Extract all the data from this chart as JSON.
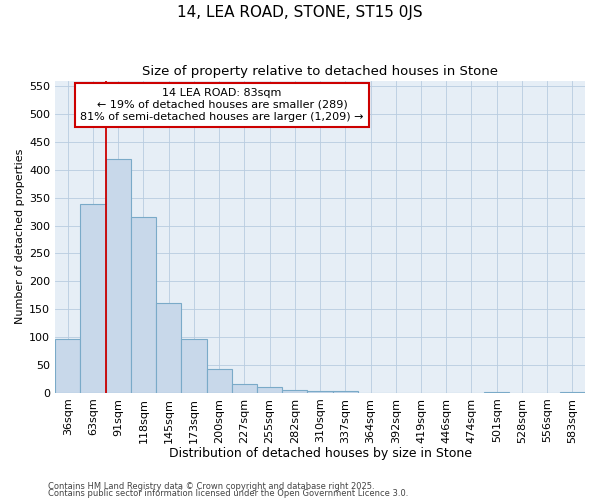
{
  "title": "14, LEA ROAD, STONE, ST15 0JS",
  "subtitle": "Size of property relative to detached houses in Stone",
  "xlabel": "Distribution of detached houses by size in Stone",
  "ylabel": "Number of detached properties",
  "categories": [
    "36sqm",
    "63sqm",
    "91sqm",
    "118sqm",
    "145sqm",
    "173sqm",
    "200sqm",
    "227sqm",
    "255sqm",
    "282sqm",
    "310sqm",
    "337sqm",
    "364sqm",
    "392sqm",
    "419sqm",
    "446sqm",
    "474sqm",
    "501sqm",
    "528sqm",
    "556sqm",
    "583sqm"
  ],
  "values": [
    97,
    338,
    420,
    315,
    162,
    97,
    42,
    16,
    10,
    5,
    4,
    4,
    0,
    0,
    0,
    0,
    0,
    2,
    0,
    0,
    2
  ],
  "bar_color": "#c8d8ea",
  "bar_edge_color": "#7aaac8",
  "bar_edge_width": 0.8,
  "annotation_text": "14 LEA ROAD: 83sqm\n← 19% of detached houses are smaller (289)\n81% of semi-detached houses are larger (1,209) →",
  "annotation_box_color": "white",
  "annotation_box_edge_color": "#cc0000",
  "red_line_color": "#cc0000",
  "ylim": [
    0,
    560
  ],
  "yticks": [
    0,
    50,
    100,
    150,
    200,
    250,
    300,
    350,
    400,
    450,
    500,
    550
  ],
  "grid_color": "#b8cce0",
  "background_color": "#e6eef6",
  "footer_line1": "Contains HM Land Registry data © Crown copyright and database right 2025.",
  "footer_line2": "Contains public sector information licensed under the Open Government Licence 3.0.",
  "title_fontsize": 11,
  "subtitle_fontsize": 9.5,
  "xlabel_fontsize": 9,
  "ylabel_fontsize": 8,
  "tick_fontsize": 8,
  "annot_fontsize": 8,
  "footer_fontsize": 6
}
